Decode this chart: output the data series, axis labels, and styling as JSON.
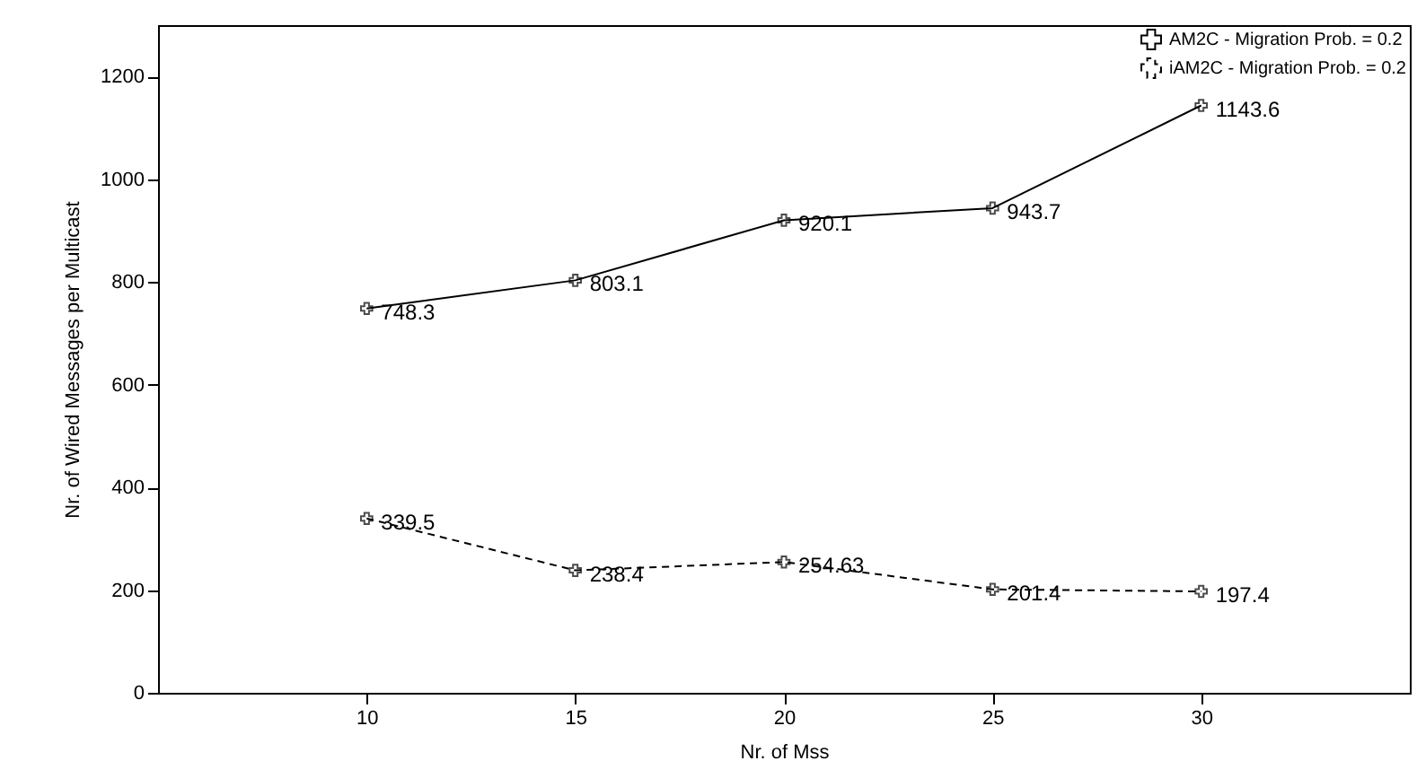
{
  "chart_data": {
    "type": "line",
    "xlabel": "Nr. of Mss",
    "ylabel": "Nr. of Wired Messages per Multicast",
    "x": [
      10,
      15,
      20,
      25,
      30
    ],
    "series": [
      {
        "name": "AM2C - Migration Prob. = 0.2",
        "color": "#000000",
        "values": [
          748.3,
          803.1,
          920.1,
          943.7,
          1143.6
        ],
        "line_style": "solid",
        "marker": "cross"
      },
      {
        "name": "iAM2C - Migration Prob. = 0.2",
        "color": "#000000",
        "values": [
          339.5,
          238.4,
          254.63,
          201.4,
          197.4
        ],
        "line_style": "dashed",
        "marker": "cross"
      }
    ],
    "xlim": [
      5,
      35
    ],
    "xticks": [
      10,
      15,
      20,
      25,
      30
    ],
    "ylim": [
      0,
      1300
    ],
    "yticks": [
      0,
      200,
      400,
      600,
      800,
      1000,
      1200
    ],
    "data_labels": true,
    "legend": "top right",
    "grid": false
  }
}
